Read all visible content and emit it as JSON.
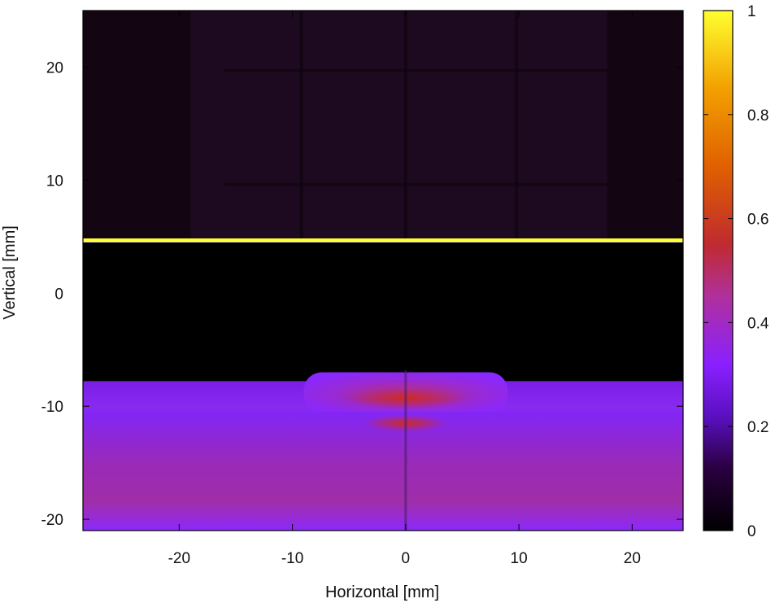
{
  "chart_data": {
    "type": "heatmap",
    "xlabel": "Horizontal [mm]",
    "ylabel": "Vertical [mm]",
    "xlim": [
      -28.5,
      24.5
    ],
    "ylim": [
      -21,
      25
    ],
    "xticks": [
      -20,
      -10,
      0,
      10,
      20
    ],
    "yticks": [
      -20,
      -10,
      0,
      10,
      20
    ],
    "grid": false,
    "colorbar": {
      "range": [
        0,
        1
      ],
      "ticks": [
        0,
        0.2,
        0.4,
        0.6,
        0.8,
        1
      ],
      "tick_labels": [
        "0",
        "0.2",
        "0.4",
        "0.6",
        "0.8",
        "1"
      ],
      "colormap": [
        "#000000",
        "#3a0060",
        "#8a20ff",
        "#b8339a",
        "#d04010",
        "#f29000",
        "#ffff30"
      ]
    },
    "regions": [
      {
        "name": "upper-background",
        "y_range": [
          4.7,
          25
        ],
        "level": 0.05
      },
      {
        "name": "bright-line",
        "y": 4.7,
        "level": 1.0
      },
      {
        "name": "dark-gap",
        "y_range": [
          -7.8,
          4.5
        ],
        "level": 0.0
      },
      {
        "name": "lower-band",
        "y_range": [
          -21,
          -7.8
        ],
        "level": 0.3
      },
      {
        "name": "central-bulge",
        "x_range": [
          -9,
          9
        ],
        "y_range": [
          -10.5,
          -7.0
        ],
        "level": 0.35
      },
      {
        "name": "hot-spot-upper",
        "x_center": 0,
        "y": -9.3,
        "level": 0.5
      },
      {
        "name": "hot-spot-lower",
        "x_center": 0,
        "y": -11.5,
        "level": 0.55
      }
    ]
  }
}
